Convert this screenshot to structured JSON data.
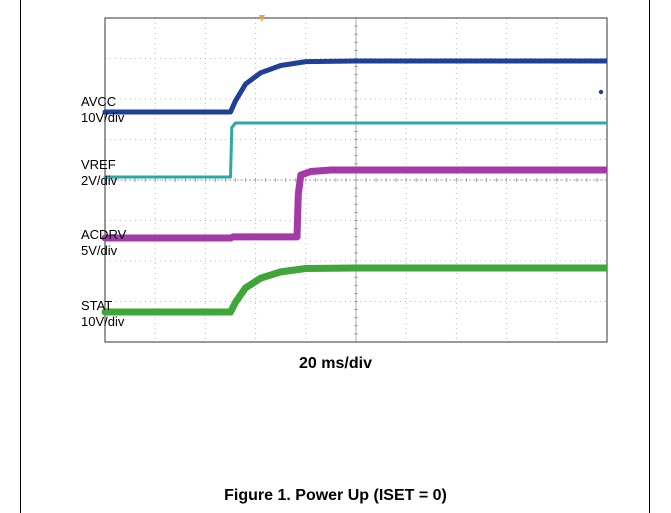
{
  "chart_data": {
    "type": "line",
    "subtype": "oscilloscope-capture",
    "x_unit": "ms",
    "time_per_div_ms": 20,
    "divisions": {
      "horizontal": 10,
      "vertical": 8
    },
    "grid": true,
    "trigger_marker_color": "#e8a33d",
    "series": [
      {
        "name": "AVCC",
        "scale": "10V/div",
        "color": "#1f3f99",
        "x": [
          0,
          50,
          52,
          56,
          62,
          70,
          80,
          100,
          200
        ],
        "y": [
          0,
          0,
          4,
          10,
          14,
          16.6,
          18,
          18.2,
          18.2
        ]
      },
      {
        "name": "VREF",
        "scale": "2V/div",
        "color": "#2aa9a6",
        "x": [
          0,
          50,
          50.5,
          52,
          200
        ],
        "y": [
          0,
          0,
          3.3,
          3.6,
          3.6
        ]
      },
      {
        "name": "ACDRV",
        "scale": "5V/div",
        "color": "#a43aa8",
        "x": [
          0,
          50,
          51,
          76.5,
          77,
          78,
          82,
          90,
          200
        ],
        "y": [
          0,
          0,
          0.15,
          0.15,
          6,
          8.6,
          9.1,
          9.3,
          9.3
        ]
      },
      {
        "name": "STAT",
        "scale": "10V/div",
        "color": "#3fa63a",
        "x": [
          0,
          50,
          52,
          56,
          62,
          70,
          80,
          100,
          200
        ],
        "y": [
          0,
          0,
          4,
          10,
          14,
          16.6,
          18,
          18.2,
          18.2
        ]
      }
    ]
  },
  "labels": {
    "avcc_name": "AVCC",
    "avcc_scale": "10V/div",
    "vref_name": "VREF",
    "vref_scale": "2V/div",
    "acdrv_name": "ACDRV",
    "acdrv_scale": "5V/div",
    "stat_name": "STAT",
    "stat_scale": "10V/div",
    "xlabel": "20 ms/div",
    "caption": "Figure 1. Power Up (ISET = 0)"
  }
}
